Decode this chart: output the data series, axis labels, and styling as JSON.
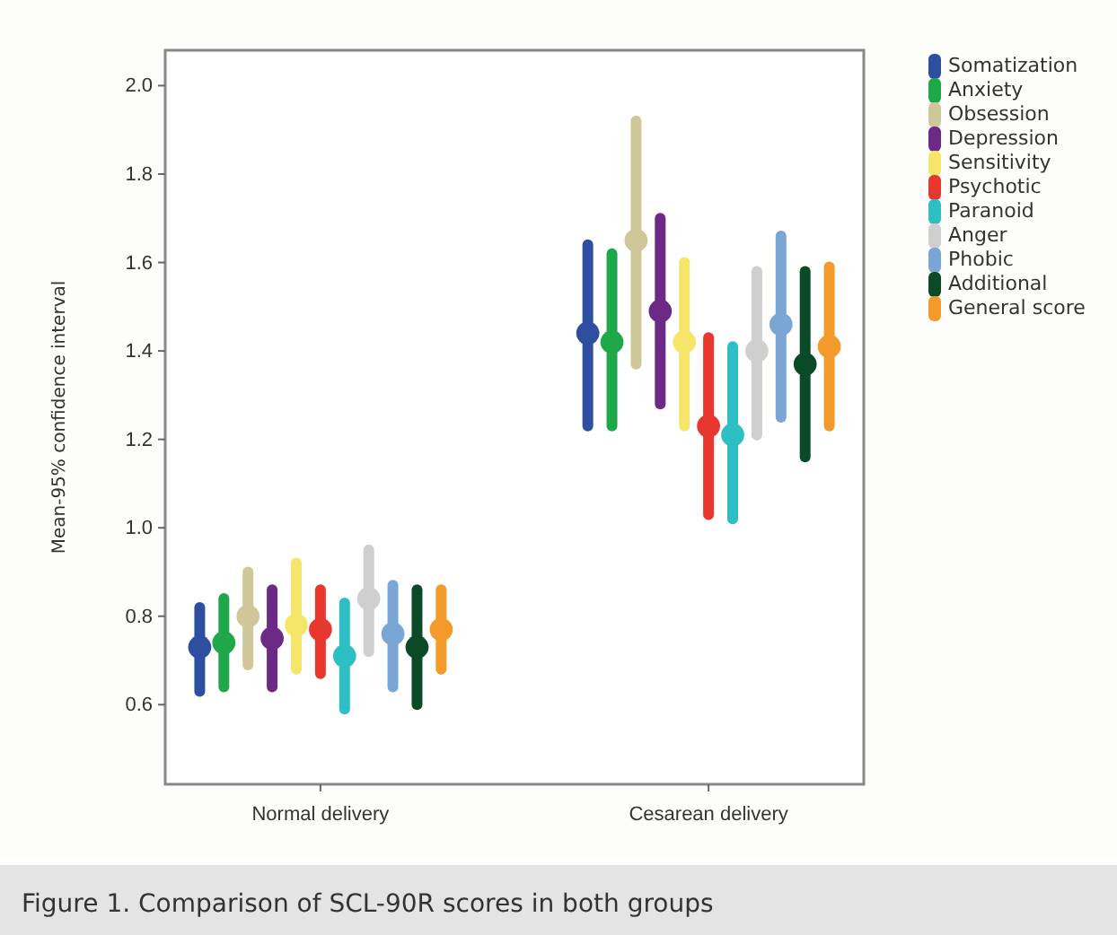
{
  "chart_data": {
    "type": "scatter",
    "ylabel": "Mean-95% confidence interval",
    "categories": [
      "Normal delivery",
      "Cesarean delivery"
    ],
    "ylim": [
      0.42,
      2.08
    ],
    "yticks": [
      {
        "value": 0.6,
        "label": "0.6"
      },
      {
        "value": 0.8,
        "label": "0.8"
      },
      {
        "value": 1.0,
        "label": "1.0"
      },
      {
        "value": 1.2,
        "label": "1.2"
      },
      {
        "value": 1.4,
        "label": "1.4"
      },
      {
        "value": 1.6,
        "label": "1.6"
      },
      {
        "value": 1.8,
        "label": "1.8"
      },
      {
        "value": 2.0,
        "label": "2.0"
      }
    ],
    "marker": "circle",
    "legend": "right",
    "grid": false,
    "series": [
      {
        "name": "Somatization",
        "color": "#2e4fa0",
        "values": [
          0.73,
          1.44
        ],
        "errors": [
          [
            0.63,
            0.82
          ],
          [
            1.23,
            1.64
          ]
        ]
      },
      {
        "name": "Anxiety",
        "color": "#1fa84a",
        "values": [
          0.74,
          1.42
        ],
        "errors": [
          [
            0.64,
            0.84
          ],
          [
            1.23,
            1.62
          ]
        ]
      },
      {
        "name": "Obsession",
        "color": "#cfc79a",
        "values": [
          0.8,
          1.65
        ],
        "errors": [
          [
            0.69,
            0.9
          ],
          [
            1.37,
            1.92
          ]
        ]
      },
      {
        "name": "Depression",
        "color": "#6b2a86",
        "values": [
          0.75,
          1.49
        ],
        "errors": [
          [
            0.64,
            0.86
          ],
          [
            1.28,
            1.7
          ]
        ]
      },
      {
        "name": "Sensitivity",
        "color": "#f5e66a",
        "values": [
          0.78,
          1.42
        ],
        "errors": [
          [
            0.68,
            0.92
          ],
          [
            1.23,
            1.6
          ]
        ]
      },
      {
        "name": "Psychotic",
        "color": "#e8372f",
        "values": [
          0.77,
          1.23
        ],
        "errors": [
          [
            0.67,
            0.86
          ],
          [
            1.03,
            1.43
          ]
        ]
      },
      {
        "name": "Paranoid",
        "color": "#2ebfc4",
        "values": [
          0.71,
          1.21
        ],
        "errors": [
          [
            0.59,
            0.83
          ],
          [
            1.02,
            1.41
          ]
        ]
      },
      {
        "name": "Anger",
        "color": "#cfcfcf",
        "values": [
          0.84,
          1.4
        ],
        "errors": [
          [
            0.72,
            0.95
          ],
          [
            1.21,
            1.58
          ]
        ]
      },
      {
        "name": "Phobic",
        "color": "#7aa6d6",
        "values": [
          0.76,
          1.46
        ],
        "errors": [
          [
            0.64,
            0.87
          ],
          [
            1.25,
            1.66
          ]
        ]
      },
      {
        "name": "Additional",
        "color": "#0a4a26",
        "values": [
          0.73,
          1.37
        ],
        "errors": [
          [
            0.6,
            0.86
          ],
          [
            1.16,
            1.58
          ]
        ]
      },
      {
        "name": "General score",
        "color": "#f39a2a",
        "values": [
          0.77,
          1.41
        ],
        "errors": [
          [
            0.68,
            0.86
          ],
          [
            1.23,
            1.59
          ]
        ]
      }
    ],
    "annotations": [
      "Figure 1. Comparison of SCL-90R scores in both groups"
    ]
  }
}
